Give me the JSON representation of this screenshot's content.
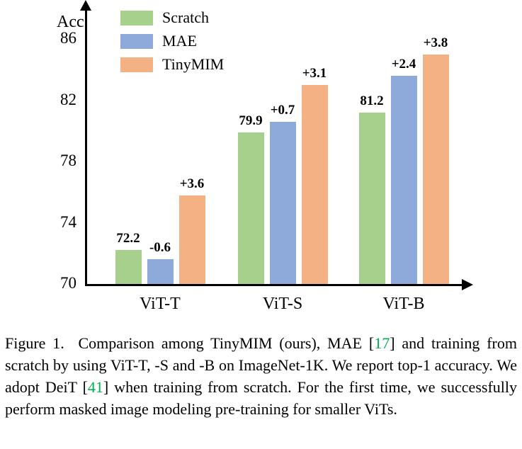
{
  "chart_data": {
    "type": "bar",
    "title": "",
    "xlabel": "",
    "ylabel": "Acc.",
    "categories": [
      "ViT-T",
      "ViT-S",
      "ViT-B"
    ],
    "series": [
      {
        "name": "Scratch",
        "color": "#a8d08d",
        "values": [
          72.2,
          79.9,
          81.2
        ],
        "bar_labels": [
          "72.2",
          "79.9",
          "81.2"
        ]
      },
      {
        "name": "MAE",
        "color": "#8eaadb",
        "values": [
          71.6,
          80.6,
          83.6
        ],
        "bar_labels": [
          "-0.6",
          "+0.7",
          "+2.4"
        ]
      },
      {
        "name": "TinyMIM",
        "color": "#f4b183",
        "values": [
          75.8,
          83.0,
          85.0
        ],
        "bar_labels": [
          "+3.6",
          "+3.1",
          "+3.8"
        ]
      }
    ],
    "y_ticks": [
      70,
      74,
      78,
      82,
      86
    ],
    "ylim": [
      70,
      87.5
    ],
    "grid": false,
    "legend_position": "top-left"
  },
  "caption": {
    "cite_color": "#00b050",
    "segments": [
      {
        "text": "Figure 1.  Comparison among TinyMIM (ours), MAE [",
        "cite": false
      },
      {
        "text": "17",
        "cite": true
      },
      {
        "text": "] and training from scratch by using ViT-T, -S and -B on ImageNet-1K. We report top-1 accuracy. We adopt DeiT [",
        "cite": false
      },
      {
        "text": "41",
        "cite": true
      },
      {
        "text": "] when training from scratch. For the first time, we successfully perform masked image modeling pre-training for smaller ViTs.",
        "cite": false
      }
    ]
  }
}
